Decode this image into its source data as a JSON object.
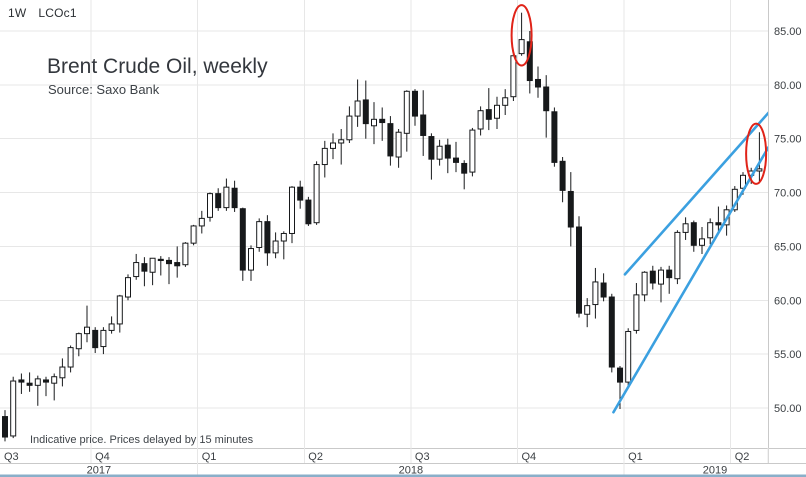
{
  "toolbar": {
    "timeframe": "1W",
    "symbol": "LCOc1"
  },
  "title": "Brent Crude Oil, weekly",
  "subtitle": "Source: Saxo Bank",
  "footnote": "Indicative price. Prices delayed by 15 minutes",
  "colors": {
    "background": "#ffffff",
    "gridline": "#e7e7e7",
    "axis_border": "#c9c9c9",
    "bottom_edge": "#8aafc9",
    "candle_up_fill": "#ffffff",
    "candle_down_fill": "#17191b",
    "candle_stroke": "#17191b",
    "channel_blue": "#3ba0e0",
    "annotation_red": "#e02318",
    "text_dark": "#33373d",
    "axis_text": "#3c4044"
  },
  "y_axis": {
    "side": "right",
    "labels": [
      {
        "price": 85,
        "label": "85.00"
      },
      {
        "price": 80,
        "label": "80.00"
      },
      {
        "price": 75,
        "label": "75.00"
      },
      {
        "price": 70,
        "label": "70.00"
      },
      {
        "price": 65,
        "label": "65.00"
      },
      {
        "price": 60,
        "label": "60.00"
      },
      {
        "price": 55,
        "label": "55.00"
      },
      {
        "price": 50,
        "label": "50.00"
      }
    ]
  },
  "x_axis": {
    "quarters": [
      {
        "label": "Q3",
        "boundary_week": null
      },
      {
        "label": "Q4",
        "boundary_week": 10.5
      },
      {
        "label": "Q1",
        "boundary_week": 23.5
      },
      {
        "label": "Q2",
        "boundary_week": 36.5
      },
      {
        "label": "Q3",
        "boundary_week": 49.5
      },
      {
        "label": "Q4",
        "boundary_week": 62.5
      },
      {
        "label": "Q1",
        "boundary_week": 75.5
      },
      {
        "label": "Q2",
        "boundary_week": 88.5
      }
    ],
    "years": [
      {
        "label": "2017",
        "from_week": null,
        "to_week": 23.5
      },
      {
        "label": "2018",
        "from_week": 23.5,
        "to_week": 75.5
      },
      {
        "label": "2019",
        "from_week": 75.5,
        "to_week": null
      }
    ]
  },
  "chart_data": {
    "type": "candlestick",
    "symbol": "LCOc1",
    "interval": "weekly",
    "title": "Brent Crude Oil, weekly",
    "grid": true,
    "y_visible_range": [
      46.3,
      87.9
    ],
    "y_gridline_step": 5,
    "weeks_ohlc_format": [
      "week_start_date",
      "open",
      "high",
      "low",
      "close"
    ],
    "weeks": [
      [
        "2017-07-17",
        49.2,
        49.8,
        46.9,
        47.3
      ],
      [
        "2017-07-24",
        47.4,
        52.9,
        47.2,
        52.5
      ],
      [
        "2017-07-31",
        52.6,
        53.2,
        51.3,
        52.4
      ],
      [
        "2017-08-07",
        52.3,
        53.3,
        51.5,
        52.1
      ],
      [
        "2017-08-14",
        52.1,
        53.0,
        50.2,
        52.7
      ],
      [
        "2017-08-21",
        52.6,
        52.9,
        51.1,
        52.4
      ],
      [
        "2017-08-28",
        52.3,
        53.2,
        50.7,
        52.9
      ],
      [
        "2017-09-04",
        52.8,
        54.6,
        52.0,
        53.8
      ],
      [
        "2017-09-11",
        53.8,
        55.8,
        53.3,
        55.6
      ],
      [
        "2017-09-18",
        55.5,
        57.0,
        54.8,
        56.9
      ],
      [
        "2017-09-25",
        56.9,
        59.5,
        56.1,
        57.5
      ],
      [
        "2017-10-02",
        57.2,
        57.5,
        55.1,
        55.6
      ],
      [
        "2017-10-09",
        55.7,
        57.5,
        55.0,
        57.2
      ],
      [
        "2017-10-16",
        57.2,
        58.5,
        56.9,
        57.8
      ],
      [
        "2017-10-23",
        57.8,
        60.5,
        57.0,
        60.4
      ],
      [
        "2017-10-30",
        60.3,
        62.4,
        60.0,
        62.1
      ],
      [
        "2017-11-06",
        62.2,
        64.3,
        61.9,
        63.5
      ],
      [
        "2017-11-13",
        63.4,
        64.0,
        61.3,
        62.7
      ],
      [
        "2017-11-20",
        62.6,
        63.9,
        61.4,
        63.9
      ],
      [
        "2017-11-27",
        63.8,
        64.1,
        62.3,
        63.7
      ],
      [
        "2017-12-04",
        63.7,
        64.0,
        61.5,
        63.4
      ],
      [
        "2017-12-11",
        63.5,
        65.0,
        62.1,
        63.2
      ],
      [
        "2017-12-18",
        63.3,
        65.4,
        63.1,
        65.3
      ],
      [
        "2017-12-25",
        65.3,
        67.0,
        65.1,
        66.9
      ],
      [
        "2018-01-01",
        66.9,
        68.3,
        66.2,
        67.6
      ],
      [
        "2018-01-08",
        67.7,
        70.0,
        67.3,
        69.9
      ],
      [
        "2018-01-15",
        69.9,
        70.4,
        68.3,
        68.6
      ],
      [
        "2018-01-22",
        68.6,
        71.3,
        68.3,
        70.5
      ],
      [
        "2018-01-29",
        70.4,
        71.1,
        68.2,
        68.6
      ],
      [
        "2018-02-05",
        68.5,
        68.6,
        61.8,
        62.8
      ],
      [
        "2018-02-12",
        62.8,
        65.1,
        61.8,
        64.8
      ],
      [
        "2018-02-19",
        64.9,
        67.6,
        64.5,
        67.3
      ],
      [
        "2018-02-26",
        67.3,
        67.9,
        63.2,
        64.4
      ],
      [
        "2018-03-05",
        64.4,
        66.3,
        63.9,
        65.5
      ],
      [
        "2018-03-12",
        65.5,
        66.4,
        63.8,
        66.2
      ],
      [
        "2018-03-19",
        66.2,
        70.6,
        65.3,
        70.5
      ],
      [
        "2018-03-26",
        70.5,
        71.1,
        68.5,
        69.3
      ],
      [
        "2018-04-02",
        69.3,
        69.6,
        66.9,
        67.1
      ],
      [
        "2018-04-09",
        67.2,
        72.9,
        67.0,
        72.6
      ],
      [
        "2018-04-16",
        72.6,
        74.8,
        71.4,
        74.1
      ],
      [
        "2018-04-23",
        74.1,
        75.5,
        73.1,
        74.6
      ],
      [
        "2018-04-30",
        74.6,
        75.9,
        72.6,
        74.9
      ],
      [
        "2018-05-07",
        74.9,
        78.0,
        74.6,
        77.1
      ],
      [
        "2018-05-14",
        77.1,
        80.5,
        76.1,
        78.5
      ],
      [
        "2018-05-21",
        78.6,
        80.4,
        75.0,
        76.4
      ],
      [
        "2018-05-28",
        76.2,
        78.4,
        74.5,
        76.8
      ],
      [
        "2018-06-04",
        76.8,
        77.9,
        74.8,
        76.5
      ],
      [
        "2018-06-11",
        76.4,
        77.1,
        72.5,
        73.4
      ],
      [
        "2018-06-18",
        73.3,
        75.9,
        72.3,
        75.6
      ],
      [
        "2018-06-25",
        75.5,
        79.5,
        73.8,
        79.4
      ],
      [
        "2018-07-02",
        79.4,
        79.6,
        76.2,
        77.1
      ],
      [
        "2018-07-09",
        77.2,
        79.5,
        73.4,
        75.3
      ],
      [
        "2018-07-16",
        75.2,
        75.5,
        71.2,
        73.1
      ],
      [
        "2018-07-23",
        73.1,
        74.9,
        72.5,
        74.3
      ],
      [
        "2018-07-30",
        74.4,
        75.0,
        71.8,
        73.2
      ],
      [
        "2018-08-06",
        73.2,
        74.7,
        71.9,
        72.8
      ],
      [
        "2018-08-13",
        72.7,
        73.0,
        70.3,
        71.8
      ],
      [
        "2018-08-20",
        71.9,
        76.0,
        71.5,
        75.8
      ],
      [
        "2018-08-27",
        75.9,
        78.0,
        75.3,
        77.6
      ],
      [
        "2018-09-03",
        77.7,
        79.7,
        75.8,
        76.8
      ],
      [
        "2018-09-10",
        76.9,
        78.9,
        75.9,
        78.1
      ],
      [
        "2018-09-17",
        78.1,
        79.6,
        77.2,
        78.8
      ],
      [
        "2018-09-24",
        78.9,
        82.9,
        78.5,
        82.7
      ],
      [
        "2018-10-01",
        82.9,
        86.7,
        82.7,
        84.2
      ],
      [
        "2018-10-08",
        84.0,
        85.0,
        79.2,
        80.4
      ],
      [
        "2018-10-15",
        80.5,
        81.7,
        78.8,
        79.8
      ],
      [
        "2018-10-22",
        79.8,
        80.9,
        75.1,
        77.6
      ],
      [
        "2018-10-29",
        77.5,
        77.9,
        72.4,
        72.8
      ],
      [
        "2018-11-05",
        72.9,
        73.3,
        69.1,
        70.2
      ],
      [
        "2018-11-12",
        70.1,
        71.9,
        65.0,
        66.8
      ],
      [
        "2018-11-19",
        66.8,
        67.8,
        58.4,
        58.8
      ],
      [
        "2018-11-26",
        58.7,
        60.2,
        57.5,
        59.5
      ],
      [
        "2018-12-03",
        59.6,
        63.0,
        58.3,
        61.7
      ],
      [
        "2018-12-10",
        61.6,
        62.5,
        59.9,
        60.3
      ],
      [
        "2018-12-17",
        60.3,
        60.6,
        53.3,
        53.8
      ],
      [
        "2018-12-24",
        53.7,
        53.9,
        49.9,
        52.4
      ],
      [
        "2018-12-31",
        52.4,
        57.4,
        52.0,
        57.1
      ],
      [
        "2019-01-07",
        57.2,
        61.6,
        56.9,
        60.5
      ],
      [
        "2019-01-14",
        60.5,
        62.7,
        59.9,
        62.6
      ],
      [
        "2019-01-21",
        62.7,
        63.2,
        61.0,
        61.6
      ],
      [
        "2019-01-28",
        61.5,
        63.1,
        59.8,
        62.8
      ],
      [
        "2019-02-04",
        62.8,
        63.2,
        60.6,
        62.1
      ],
      [
        "2019-02-11",
        62.0,
        66.5,
        61.5,
        66.3
      ],
      [
        "2019-02-18",
        66.3,
        67.7,
        65.6,
        67.1
      ],
      [
        "2019-02-25",
        67.2,
        67.4,
        64.5,
        65.1
      ],
      [
        "2019-03-04",
        65.1,
        66.8,
        64.3,
        65.7
      ],
      [
        "2019-03-11",
        65.8,
        67.6,
        65.2,
        67.2
      ],
      [
        "2019-03-18",
        67.2,
        68.7,
        66.4,
        67.0
      ],
      [
        "2019-03-25",
        67.0,
        68.8,
        66.0,
        68.4
      ],
      [
        "2019-04-01",
        68.4,
        70.6,
        68.2,
        70.3
      ],
      [
        "2019-04-08",
        70.4,
        71.9,
        69.8,
        71.6
      ],
      [
        "2019-04-15",
        71.6,
        72.3,
        70.8,
        72.0
      ],
      [
        "2019-04-22",
        72.0,
        75.6,
        71.0,
        72.2
      ]
    ],
    "annotations": {
      "channel_lines": [
        {
          "name": "lower",
          "from": {
            "week": 74.2,
            "price": 49.6
          },
          "to": {
            "week": 93.1,
            "price": 74.2
          }
        },
        {
          "name": "upper",
          "from": {
            "week": 75.6,
            "price": 62.4
          },
          "to": {
            "week": 93.1,
            "price": 77.4
          }
        }
      ],
      "ellipses": [
        {
          "name": "top-peak",
          "week": 63,
          "price": 84.6,
          "ry_price": 2.8
        },
        {
          "name": "last-candle",
          "week": 91.6,
          "price": 73.6,
          "ry_price": 2.8
        }
      ]
    }
  }
}
